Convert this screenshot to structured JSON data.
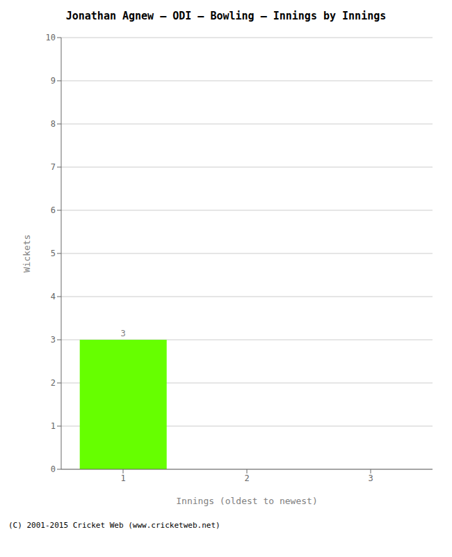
{
  "chart_data": {
    "type": "bar",
    "title": "Jonathan Agnew – ODI – Bowling – Innings by Innings",
    "xlabel": "Innings (oldest to newest)",
    "ylabel": "Wickets",
    "categories": [
      1,
      2,
      3
    ],
    "values": [
      3,
      0,
      0
    ],
    "color": "#66ff00",
    "ylim": [
      0,
      10
    ],
    "yticks": [
      0,
      1,
      2,
      3,
      4,
      5,
      6,
      7,
      8,
      9,
      10
    ],
    "grid": true,
    "data_labels": true,
    "annotations": [
      "(C) 2001-2015 Cricket Web (www.cricketweb.net)"
    ]
  }
}
